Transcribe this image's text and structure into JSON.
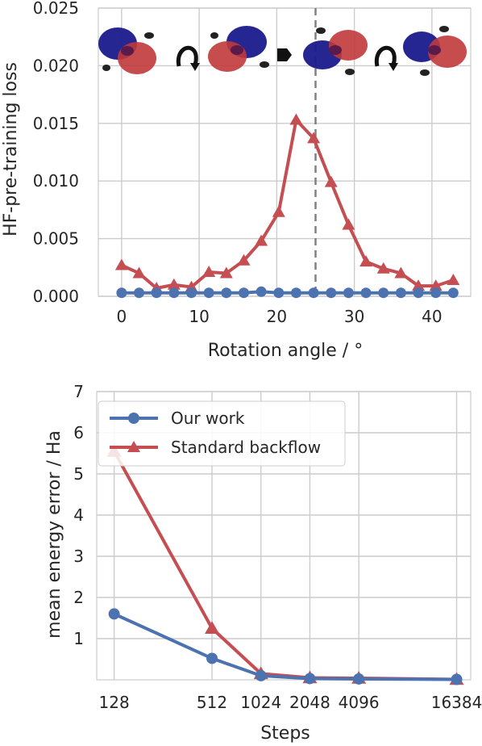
{
  "colors": {
    "our_work": "#4c72b0",
    "standard_backflow": "#c44e52",
    "grid": "#cccccc",
    "text": "#262626",
    "marker_line": "#808080"
  },
  "chart_data": [
    {
      "type": "line",
      "xlabel": "Rotation angle / °",
      "ylabel": "HF-pre-training loss",
      "xlim": [
        -3,
        45
      ],
      "ylim": [
        0,
        0.025
      ],
      "xticks": [
        0,
        10,
        20,
        30,
        40
      ],
      "xtick_labels": [
        "0",
        "10",
        "20",
        "30",
        "40"
      ],
      "yticks": [
        0,
        0.005,
        0.01,
        0.015,
        0.02,
        0.025
      ],
      "ytick_labels": [
        "0.000",
        "0.005",
        "0.010",
        "0.015",
        "0.020",
        "0.025"
      ],
      "grid": true,
      "legend": "none",
      "vertical_dashed_line_x": 25,
      "inset_icons": [
        "molecule-orbital-icon",
        "rotate-arrow-icon",
        "molecule-orbital-icon",
        "right-arrow-icon",
        "molecule-orbital-icon",
        "rotate-arrow-icon",
        "molecule-orbital-icon"
      ],
      "x": [
        0,
        2.25,
        4.5,
        6.75,
        9,
        11.25,
        13.5,
        15.75,
        18,
        20.25,
        22.5,
        24.75,
        27,
        29.25,
        31.5,
        33.75,
        36,
        38.25,
        40.5,
        42.75
      ],
      "series": [
        {
          "key": "our_work",
          "marker": "circle",
          "values": [
            0.0003,
            0.0003,
            0.0003,
            0.0003,
            0.0003,
            0.0003,
            0.0003,
            0.0003,
            0.0004,
            0.0003,
            0.0003,
            0.0003,
            0.0003,
            0.0003,
            0.0003,
            0.0003,
            0.0003,
            0.0003,
            0.0003,
            0.0003
          ]
        },
        {
          "key": "standard_backflow",
          "marker": "triangle",
          "values": [
            0.0027,
            0.002,
            0.0007,
            0.001,
            0.0008,
            0.0021,
            0.002,
            0.0031,
            0.0048,
            0.0073,
            0.0153,
            0.0137,
            0.0099,
            0.0062,
            0.003,
            0.0024,
            0.002,
            0.0009,
            0.0009,
            0.0014
          ]
        }
      ]
    },
    {
      "type": "line",
      "xlabel": "Steps",
      "ylabel": "mean energy error / Ha",
      "x_scale": "log2",
      "xlim": [
        100,
        20000
      ],
      "ylim": [
        0,
        7
      ],
      "categories": [
        "128",
        "512",
        "1024",
        "2048",
        "4096",
        "16384"
      ],
      "x": [
        128,
        512,
        1024,
        2048,
        4096,
        16384
      ],
      "yticks": [
        1,
        2,
        3,
        4,
        5,
        6,
        7
      ],
      "ytick_labels": [
        "1",
        "2",
        "3",
        "4",
        "5",
        "6",
        "7"
      ],
      "grid": true,
      "legend": "top-left",
      "series": [
        {
          "key": "our_work",
          "name": "Our work",
          "marker": "circle",
          "values": [
            1.6,
            0.52,
            0.1,
            0.03,
            0.02,
            0.01
          ]
        },
        {
          "key": "standard_backflow",
          "name": "Standard backflow",
          "marker": "triangle",
          "values": [
            5.55,
            1.25,
            0.15,
            0.05,
            0.04,
            0.01
          ]
        }
      ]
    }
  ]
}
